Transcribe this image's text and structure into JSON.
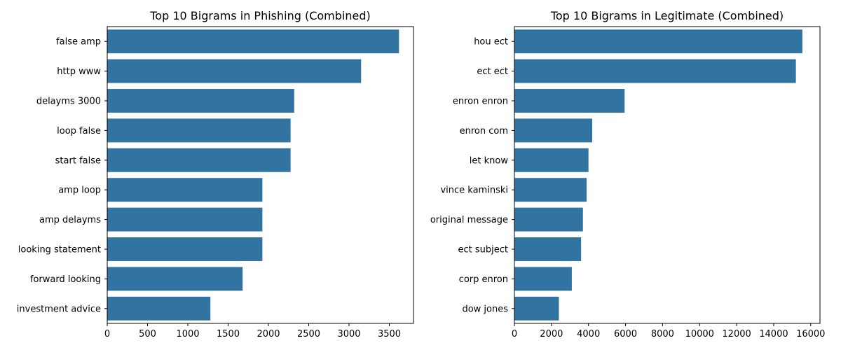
{
  "chart_data": [
    {
      "type": "bar",
      "orientation": "horizontal",
      "title": "Top 10 Bigrams in Phishing (Combined)",
      "xlabel": "",
      "ylabel": "",
      "categories": [
        "false amp",
        "http www",
        "delayms 3000",
        "loop false",
        "start false",
        "amp loop",
        "amp delayms",
        "looking statement",
        "forward looking",
        "investment advice"
      ],
      "values": [
        3620,
        3150,
        2320,
        2275,
        2275,
        1925,
        1925,
        1925,
        1680,
        1280
      ],
      "xlim": [
        0,
        3800
      ],
      "xticks": [
        0,
        500,
        1000,
        1500,
        2000,
        2500,
        3000,
        3500
      ],
      "grid": false,
      "bar_color": "#3274a1"
    },
    {
      "type": "bar",
      "orientation": "horizontal",
      "title": "Top 10 Bigrams in Legitimate (Combined)",
      "xlabel": "",
      "ylabel": "",
      "categories": [
        "hou ect",
        "ect ect",
        "enron enron",
        "enron com",
        "let know",
        "vince kaminski",
        "original message",
        "ect subject",
        "corp enron",
        "dow jones"
      ],
      "values": [
        15550,
        15200,
        5950,
        4200,
        4000,
        3900,
        3700,
        3600,
        3100,
        2400
      ],
      "xlim": [
        0,
        16500
      ],
      "xticks": [
        0,
        2000,
        4000,
        6000,
        8000,
        10000,
        12000,
        14000,
        16000
      ],
      "grid": false,
      "bar_color": "#3274a1"
    }
  ]
}
